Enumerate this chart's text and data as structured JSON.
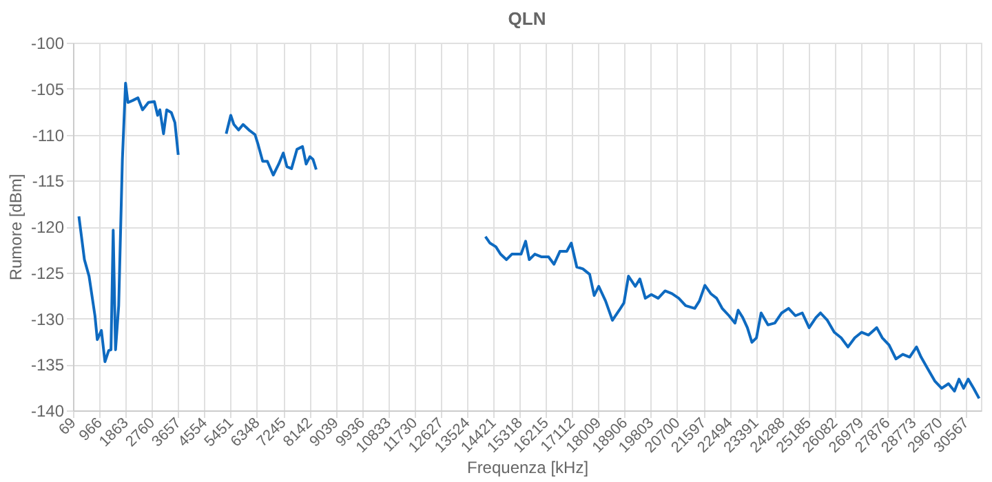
{
  "chart_data": {
    "type": "line",
    "title": "QLN",
    "xlabel": "Frequenza [kHz]",
    "ylabel": "Rumore [dBm]",
    "x": [
      270,
      458,
      617,
      818,
      898,
      1038,
      1160,
      1287,
      1366,
      1441,
      1521,
      1629,
      1755,
      1863,
      1943,
      2097,
      2285,
      2444,
      2645,
      2847,
      2959,
      3035,
      3160,
      3268,
      3427,
      3549,
      3662,
      4500,
      5301,
      5456,
      5563,
      5723,
      5877,
      6079,
      6285,
      6392,
      6547,
      6706,
      6908,
      7095,
      7250,
      7376,
      7531,
      7718,
      7906,
      8032,
      8158,
      8266,
      8374,
      11000,
      14154,
      14309,
      14510,
      14669,
      14870,
      15057,
      15371,
      15526,
      15651,
      15840,
      16074,
      16308,
      16496,
      16697,
      16931,
      17086,
      17274,
      17479,
      17713,
      17868,
      18023,
      18257,
      18491,
      18725,
      18884,
      19039,
      19273,
      19428,
      19615,
      19820,
      20054,
      20289,
      20523,
      20757,
      20991,
      21302,
      21461,
      21649,
      21850,
      22050,
      22239,
      22473,
      22677,
      22785,
      22941,
      23100,
      23255,
      23410,
      23569,
      23803,
      24038,
      24272,
      24506,
      24740,
      24975,
      25209,
      25443,
      25598,
      25832,
      26067,
      26301,
      26535,
      26769,
      27003,
      27237,
      27518,
      27706,
      27940,
      28174,
      28408,
      28642,
      28876,
      29032,
      29266,
      29500,
      29735,
      29969,
      30173,
      30328,
      30485,
      30641,
      30828,
      31015
    ],
    "series": [
      {
        "color": "#0e6ac0",
        "values": [
          -118.9,
          -123.6,
          -125.4,
          -129.7,
          -132.3,
          -131.3,
          -134.7,
          -133.5,
          -133.4,
          -120.4,
          -133.4,
          -128.6,
          -112.7,
          -104.4,
          -106.5,
          -106.3,
          -106,
          -107.3,
          -106.5,
          -106.4,
          -107.9,
          -107.3,
          -109.9,
          -107.3,
          -107.6,
          -108.7,
          -112.2,
          null,
          -109.9,
          -107.9,
          -108.9,
          -109.5,
          -108.9,
          -109.5,
          -110,
          -111.1,
          -112.9,
          -112.9,
          -114.4,
          -113.2,
          -112,
          -113.5,
          -113.7,
          -111.6,
          -111.3,
          -113.2,
          -112.4,
          -112.7,
          -113.8,
          null,
          -121.1,
          -121.8,
          -122.2,
          -123,
          -123.6,
          -123,
          -123,
          -121.6,
          -123.6,
          -123,
          -123.3,
          -123.3,
          -124.1,
          -122.7,
          -122.7,
          -121.8,
          -124.4,
          -124.6,
          -125.2,
          -127.5,
          -126.5,
          -128.1,
          -130.2,
          -129.1,
          -128.3,
          -125.4,
          -126.5,
          -125.7,
          -127.8,
          -127.4,
          -127.8,
          -127,
          -127.3,
          -127.8,
          -128.6,
          -128.9,
          -128.1,
          -126.4,
          -127.3,
          -127.8,
          -128.9,
          -129.7,
          -130.5,
          -129.1,
          -129.9,
          -131,
          -132.6,
          -132.1,
          -129.4,
          -130.7,
          -130.5,
          -129.4,
          -128.9,
          -129.7,
          -129.4,
          -131,
          -129.9,
          -129.4,
          -130.2,
          -131.5,
          -132.1,
          -133.1,
          -132.1,
          -131.5,
          -131.8,
          -131,
          -132.1,
          -132.9,
          -134.4,
          -133.9,
          -134.2,
          -133.1,
          -134.2,
          -135.5,
          -136.8,
          -137.6,
          -137.1,
          -137.9,
          -136.6,
          -137.6,
          -136.6,
          -137.6,
          -138.7
        ]
      }
    ],
    "xlim": [
      69,
      31078
    ],
    "xticks": [
      69,
      966,
      1863,
      2760,
      3657,
      4554,
      5451,
      6348,
      7245,
      8142,
      9039,
      9936,
      10833,
      11730,
      12627,
      13524,
      14421,
      15318,
      16215,
      17112,
      18009,
      18906,
      19803,
      20700,
      21597,
      22494,
      23391,
      24288,
      25185,
      26082,
      26979,
      27876,
      28773,
      29670,
      30567
    ],
    "ylim": [
      -140,
      -100
    ],
    "yticks": [
      -140,
      -135,
      -130,
      -125,
      -120,
      -115,
      -110,
      -105,
      -100
    ],
    "grid": true,
    "legend": false,
    "marker": "none",
    "line_style": "solid"
  }
}
